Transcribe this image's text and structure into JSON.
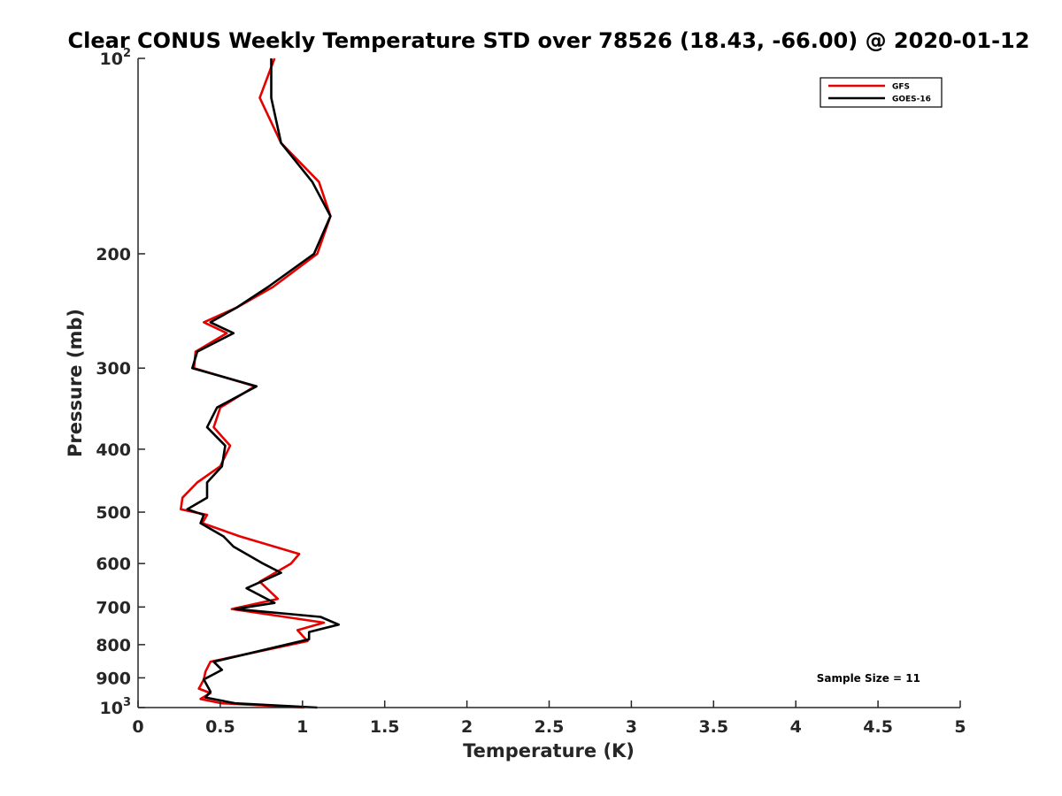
{
  "chart_data": {
    "type": "line",
    "title": "Clear CONUS Weekly Temperature STD over 78526 (18.43, -66.00) @ 2020-01-12",
    "xlabel": "Temperature (K)",
    "ylabel": "Pressure (mb)",
    "xlim": [
      0,
      5
    ],
    "ylim": [
      100,
      1000
    ],
    "y_scale": "log",
    "y_reversed": true,
    "x_ticks": [
      "0",
      "0.5",
      "1",
      "1.5",
      "2",
      "2.5",
      "3",
      "3.5",
      "4",
      "4.5",
      "5"
    ],
    "y_ticks": [
      {
        "value": 100,
        "base": "10",
        "exp": "2"
      },
      {
        "value": 200,
        "label": "200"
      },
      {
        "value": 300,
        "label": "300"
      },
      {
        "value": 400,
        "label": "400"
      },
      {
        "value": 500,
        "label": "500"
      },
      {
        "value": 600,
        "label": "600"
      },
      {
        "value": 700,
        "label": "700"
      },
      {
        "value": 800,
        "label": "800"
      },
      {
        "value": 900,
        "label": "900"
      },
      {
        "value": 1000,
        "base": "10",
        "exp": "3"
      }
    ],
    "legend_position": "top-right",
    "grid": false,
    "annotation": "Sample Size = 11",
    "series": [
      {
        "name": "GFS",
        "color": "#e60000",
        "points": [
          [
            0.83,
            100
          ],
          [
            0.74,
            115
          ],
          [
            0.87,
            135
          ],
          [
            1.1,
            155
          ],
          [
            1.17,
            175
          ],
          [
            1.09,
            200
          ],
          [
            0.82,
            225
          ],
          [
            0.6,
            242
          ],
          [
            0.4,
            255
          ],
          [
            0.54,
            265
          ],
          [
            0.35,
            283
          ],
          [
            0.34,
            300
          ],
          [
            0.71,
            320
          ],
          [
            0.5,
            345
          ],
          [
            0.46,
            370
          ],
          [
            0.56,
            395
          ],
          [
            0.5,
            425
          ],
          [
            0.36,
            450
          ],
          [
            0.27,
            475
          ],
          [
            0.26,
            495
          ],
          [
            0.42,
            505
          ],
          [
            0.39,
            520
          ],
          [
            0.62,
            545
          ],
          [
            0.98,
            580
          ],
          [
            0.93,
            600
          ],
          [
            0.74,
            640
          ],
          [
            0.85,
            680
          ],
          [
            0.57,
            705
          ],
          [
            1.13,
            740
          ],
          [
            0.97,
            760
          ],
          [
            1.03,
            790
          ],
          [
            0.44,
            850
          ],
          [
            0.41,
            880
          ],
          [
            0.4,
            905
          ],
          [
            0.37,
            935
          ],
          [
            0.44,
            950
          ],
          [
            0.38,
            970
          ],
          [
            0.51,
            985
          ],
          [
            1.01,
            1000
          ]
        ]
      },
      {
        "name": "GOES-16",
        "color": "#000000",
        "points": [
          [
            0.81,
            100
          ],
          [
            0.81,
            115
          ],
          [
            0.87,
            135
          ],
          [
            1.06,
            155
          ],
          [
            1.17,
            175
          ],
          [
            1.07,
            200
          ],
          [
            0.79,
            225
          ],
          [
            0.6,
            242
          ],
          [
            0.44,
            255
          ],
          [
            0.58,
            265
          ],
          [
            0.36,
            283
          ],
          [
            0.33,
            300
          ],
          [
            0.72,
            320
          ],
          [
            0.48,
            345
          ],
          [
            0.42,
            370
          ],
          [
            0.53,
            395
          ],
          [
            0.51,
            425
          ],
          [
            0.42,
            450
          ],
          [
            0.42,
            475
          ],
          [
            0.3,
            495
          ],
          [
            0.4,
            505
          ],
          [
            0.38,
            520
          ],
          [
            0.52,
            545
          ],
          [
            0.58,
            565
          ],
          [
            0.76,
            600
          ],
          [
            0.87,
            620
          ],
          [
            0.66,
            655
          ],
          [
            0.83,
            690
          ],
          [
            0.59,
            705
          ],
          [
            1.11,
            725
          ],
          [
            1.22,
            745
          ],
          [
            1.04,
            765
          ],
          [
            1.04,
            785
          ],
          [
            0.46,
            850
          ],
          [
            0.51,
            875
          ],
          [
            0.4,
            905
          ],
          [
            0.44,
            945
          ],
          [
            0.41,
            965
          ],
          [
            0.59,
            985
          ],
          [
            1.09,
            1000
          ]
        ]
      }
    ]
  }
}
